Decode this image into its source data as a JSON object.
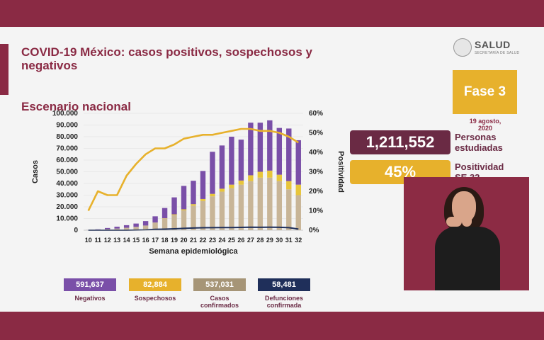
{
  "header": {
    "title": "COVID-19 México: casos positivos, sospechosos y negativos",
    "subtitle": "Escenario nacional"
  },
  "logo": {
    "brand": "SALUD",
    "secretary": "SECRETARÍA DE SALUD"
  },
  "fase": {
    "label": "Fase 3",
    "date_line1": "19 agosto,",
    "date_line2": "2020"
  },
  "stats": {
    "studied_value": "1,211,552",
    "studied_label_1": "Personas",
    "studied_label_2": "estudiadas",
    "positivity_value": "45%",
    "positivity_label_1": "Positividad",
    "positivity_label_2": "SE 32"
  },
  "summary": [
    {
      "value": "591,637",
      "label": "Negativos",
      "color": "#7a4fa8"
    },
    {
      "value": "82,884",
      "label": "Sospechosos",
      "color": "#e7b12c"
    },
    {
      "value": "537,031",
      "label": "Casos confirmados",
      "color": "#a69577"
    },
    {
      "value": "58,481",
      "label": "Defunciones confirmada",
      "color": "#1f2f5a"
    }
  ],
  "chart_data": {
    "type": "bar",
    "stacked": true,
    "xlabel": "Semana epidemiológica",
    "ylabel": "Casos",
    "y2label": "Positividad",
    "ylim": [
      0,
      100000
    ],
    "y2lim": [
      0,
      60
    ],
    "yticks": [
      "0",
      "10.000",
      "20.000",
      "30.000",
      "40.000",
      "50.000",
      "60.000",
      "70.000",
      "80.000",
      "90.000",
      "100.000"
    ],
    "y2ticks": [
      "0%",
      "10%",
      "20%",
      "30%",
      "40%",
      "50%",
      "60%"
    ],
    "categories": [
      "10",
      "11",
      "12",
      "13",
      "14",
      "15",
      "16",
      "17",
      "18",
      "19",
      "20",
      "21",
      "22",
      "23",
      "24",
      "25",
      "26",
      "27",
      "28",
      "29",
      "30",
      "31",
      "32"
    ],
    "series": [
      {
        "name": "Confirmados",
        "kind": "bar",
        "color": "#c8b597",
        "values": [
          100,
          300,
          900,
          1400,
          2100,
          2900,
          4000,
          6600,
          9900,
          13000,
          17000,
          21000,
          25000,
          29000,
          33000,
          36000,
          39000,
          42000,
          45000,
          45000,
          42000,
          35000,
          30000
        ]
      },
      {
        "name": "Sospechosos",
        "kind": "bar",
        "color": "#e7c53b",
        "values": [
          0,
          0,
          0,
          0,
          0,
          0,
          0,
          0,
          300,
          600,
          900,
          1300,
          1700,
          2100,
          2500,
          3000,
          3500,
          5000,
          5000,
          6000,
          5500,
          7000,
          9000
        ]
      },
      {
        "name": "Negativos",
        "kind": "bar",
        "color": "#7a4fa8",
        "values": [
          200,
          500,
          1000,
          1600,
          2200,
          2800,
          3800,
          5300,
          8800,
          14500,
          20000,
          20000,
          24000,
          36000,
          37000,
          41000,
          35000,
          45000,
          42000,
          43000,
          40000,
          45000,
          38000
        ]
      },
      {
        "name": "Positividad",
        "kind": "line",
        "axis": "y2",
        "color": "#e7b12c",
        "values": [
          10,
          20,
          18,
          18,
          28,
          34,
          39,
          42,
          42,
          44,
          47,
          48,
          49,
          49,
          50,
          51,
          52,
          52,
          51,
          51,
          50,
          48,
          45
        ]
      },
      {
        "name": "Defunciones",
        "kind": "line",
        "axis": "y",
        "color": "#1f2f5a",
        "values": [
          0,
          0,
          0,
          0,
          0,
          100,
          300,
          700,
          900,
          1200,
          1600,
          1900,
          2100,
          2200,
          2300,
          2300,
          2400,
          2600,
          2500,
          2600,
          2500,
          2200,
          1000
        ]
      }
    ]
  }
}
